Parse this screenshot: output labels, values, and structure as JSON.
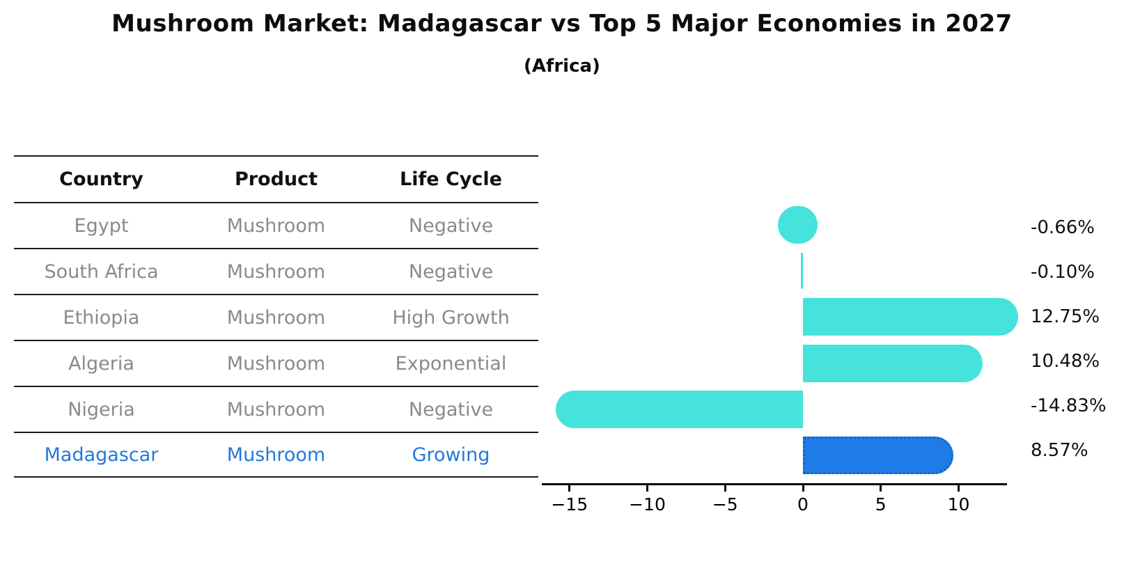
{
  "page": {
    "title": "Mushroom Market: Madagascar vs Top 5 Major Economies in 2027",
    "subtitle": "(Africa)"
  },
  "table": {
    "headers": [
      "Country",
      "Product",
      "Life Cycle"
    ],
    "rows": [
      {
        "country": "Egypt",
        "product": "Mushroom",
        "life_cycle": "Negative",
        "highlighted": false
      },
      {
        "country": "South Africa",
        "product": "Mushroom",
        "life_cycle": "Negative",
        "highlighted": false
      },
      {
        "country": "Ethiopia",
        "product": "Mushroom",
        "life_cycle": "High Growth",
        "highlighted": false
      },
      {
        "country": "Algeria",
        "product": "Mushroom",
        "life_cycle": "Exponential",
        "highlighted": false
      },
      {
        "country": "Nigeria",
        "product": "Mushroom",
        "life_cycle": "Negative",
        "highlighted": false
      },
      {
        "country": "Madagascar",
        "product": "Mushroom",
        "life_cycle": "Growing",
        "highlighted": true
      }
    ]
  },
  "chart_data": {
    "type": "bar",
    "orientation": "horizontal",
    "title": "Mushroom Market: Madagascar vs Top 5 Major Economies in 2027",
    "subtitle": "(Africa)",
    "categories": [
      "Egypt",
      "South Africa",
      "Ethiopia",
      "Algeria",
      "Nigeria",
      "Madagascar"
    ],
    "values": [
      -0.66,
      -0.1,
      12.75,
      10.48,
      -14.83,
      8.57
    ],
    "value_labels": [
      "-0.66%",
      "-0.10%",
      "12.75%",
      "10.48%",
      "-14.83%",
      "8.57%"
    ],
    "xlabel": "",
    "ylabel": "",
    "xlim": [
      -16.9,
      13.2
    ],
    "x_ticks": [
      -15,
      -10,
      -5,
      0,
      5,
      10
    ],
    "x_tick_labels": [
      "−15",
      "−10",
      "−5",
      "0",
      "5",
      "10"
    ],
    "grid": false,
    "legend": false,
    "highlighted_category": "Madagascar",
    "colors": {
      "bar": "#45e3dc",
      "highlight_bar": "#1f7be8",
      "highlight_border": "#1464c8",
      "axis": "#000000",
      "value_label": "#111111",
      "row_text": "#8a8a8a",
      "highlight_text": "#2478db",
      "header_text": "#111111"
    }
  }
}
